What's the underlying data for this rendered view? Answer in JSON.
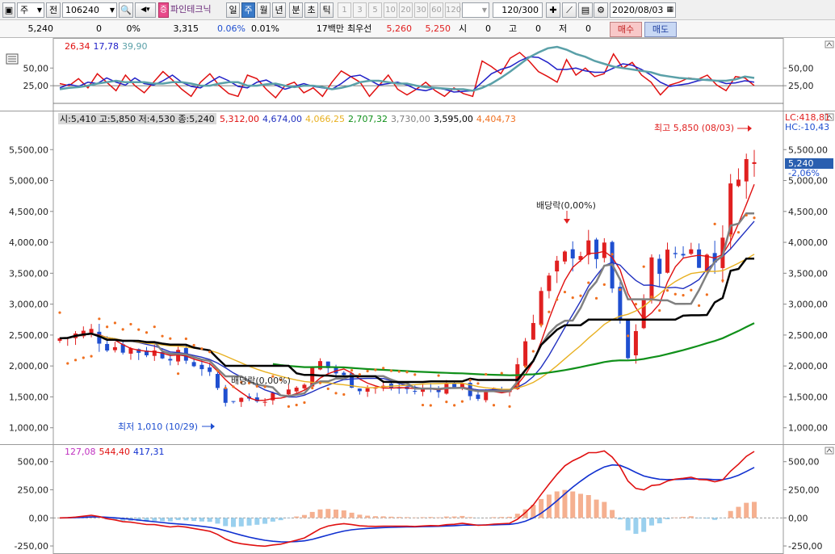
{
  "toolbar": {
    "period_type": "주",
    "jeon": "전",
    "code": "106240",
    "name": "파인테크닉",
    "jeung": "증",
    "periods": [
      "일",
      "주",
      "월",
      "년",
      "분",
      "초",
      "틱"
    ],
    "active_period": "주",
    "intervals": [
      "1",
      "3",
      "5",
      "10",
      "20",
      "30",
      "60",
      "120"
    ],
    "count": "120/300",
    "date": "2020/08/03"
  },
  "quote": {
    "price": "5,240",
    "change": "0",
    "change_pct": "0%",
    "volume": "3,315",
    "vol_pct": "0.06%",
    "vol_pct2": "0.01%",
    "amount_label": "17백만",
    "best_label": "최우선",
    "best_ask": "5,260",
    "best_bid": "5,250",
    "open_label": "시",
    "open": "0",
    "high_label": "고",
    "high": "0",
    "low_label": "저",
    "low": "0",
    "buy_label": "매수",
    "sell_label": "매도"
  },
  "stoch_legend": {
    "v1": "26,34",
    "v2": "17,78",
    "v3": "39,90"
  },
  "price_legend": {
    "ohlc": "시:5,410 고:5,850 저:4,530 종:5,240",
    "ma1": "5,312,00",
    "ma2": "4,674,00",
    "ma3": "4,066,25",
    "ma4": "2,707,32",
    "ma5": "3,730,00",
    "ma6": "3,595,00",
    "ma7": "4,404,73"
  },
  "lc_label": "LC:418,81",
  "hc_label": "HC:-10,43",
  "price_tag": "5,240",
  "price_tag_pct": "-2,06%",
  "annotations": {
    "high": "최고 5,850 (08/03)",
    "low": "최저 1,010 (10/29)",
    "div1": "배당락(0,00%)",
    "div2": "배당락(0,00%)"
  },
  "macd_legend": {
    "v1": "127,08",
    "v2": "544,40",
    "v3": "417,31"
  },
  "colors": {
    "up": "#e02020",
    "down": "#1f4fd0",
    "stoch_k": "#e01010",
    "stoch_d": "#2020c8",
    "stoch_s": "#5aa0a8",
    "ma1": "#e01010",
    "ma2": "#2030c0",
    "ma3": "#e8b020",
    "ma4": "#10901a",
    "ma5": "#808080",
    "ma6": "#000000",
    "psar": "#f07020",
    "macd": "#e01010",
    "signal": "#1030d0",
    "osc_pos": "#f5b090",
    "osc_neg": "#9ad0ee"
  },
  "chart_data": [
    {
      "type": "line",
      "panel": "stochastic",
      "yticks": [
        25,
        50
      ],
      "ylim": [
        -8,
        88
      ],
      "series": [
        {
          "values": [
            28,
            25,
            35,
            22,
            42,
            30,
            18,
            40,
            25,
            15,
            30,
            45,
            33,
            20,
            10,
            30,
            42,
            25,
            14,
            10,
            40,
            35,
            20,
            8,
            25,
            30,
            15,
            22,
            10,
            30,
            46,
            38,
            30,
            10,
            25,
            40,
            20,
            12,
            20,
            30,
            18,
            10,
            22,
            14,
            10,
            60,
            52,
            42,
            64,
            72,
            60,
            45,
            38,
            30,
            62,
            40,
            50,
            38,
            42,
            70,
            50,
            58,
            40,
            30,
            12,
            26,
            30,
            36,
            34,
            40,
            26,
            18,
            38,
            36,
            25
          ]
        },
        {
          "values": [
            22,
            27,
            24,
            30,
            28,
            36,
            30,
            26,
            36,
            28,
            26,
            32,
            40,
            30,
            24,
            22,
            30,
            38,
            32,
            24,
            22,
            30,
            33,
            26,
            20,
            24,
            28,
            24,
            22,
            20,
            28,
            38,
            40,
            33,
            26,
            28,
            30,
            26,
            20,
            18,
            22,
            20,
            16,
            17,
            18,
            30,
            42,
            48,
            52,
            60,
            66,
            65,
            58,
            48,
            48,
            50,
            46,
            44,
            44,
            50,
            56,
            54,
            48,
            40,
            30,
            24,
            26,
            28,
            32,
            34,
            32,
            28,
            29,
            32,
            30
          ]
        },
        {
          "values": [
            20,
            22,
            23,
            25,
            28,
            30,
            32,
            30,
            30,
            30,
            28,
            28,
            30,
            30,
            28,
            25,
            25,
            28,
            30,
            30,
            25,
            25,
            27,
            28,
            25,
            23,
            25,
            25,
            23,
            20,
            22,
            25,
            30,
            32,
            32,
            30,
            28,
            28,
            25,
            23,
            22,
            21,
            20,
            20,
            18,
            22,
            28,
            36,
            45,
            55,
            65,
            72,
            78,
            80,
            76,
            70,
            66,
            60,
            56,
            52,
            50,
            48,
            46,
            44,
            40,
            38,
            36,
            35,
            34,
            33,
            32,
            32,
            34,
            38,
            36
          ]
        }
      ]
    },
    {
      "type": "candlestick",
      "panel": "price",
      "yticks": [
        1000,
        1500,
        2000,
        2500,
        3000,
        3500,
        4000,
        4500,
        5000,
        5500
      ],
      "ylim": [
        800,
        6000
      ],
      "high_value": 5850,
      "low_value": 1010,
      "last": 5240
    },
    {
      "type": "bar",
      "panel": "macd",
      "yticks": [
        -250,
        0,
        250,
        500
      ],
      "ylim": [
        -300,
        620
      ]
    }
  ]
}
